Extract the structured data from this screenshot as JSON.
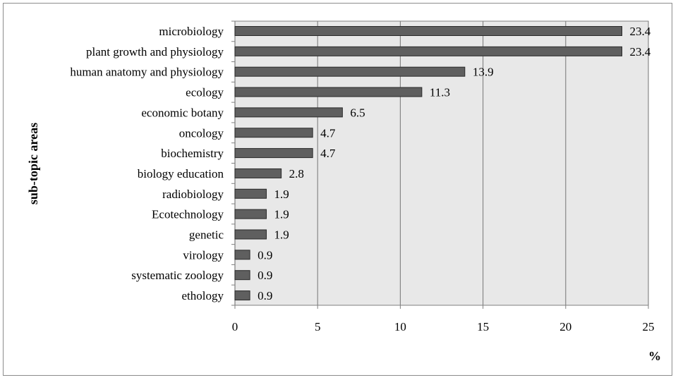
{
  "chart_data": {
    "type": "bar",
    "orientation": "horizontal",
    "categories": [
      "microbiology",
      "plant growth and physiology",
      "human anatomy and physiology",
      "ecology",
      "economic botany",
      "oncology",
      "biochemistry",
      "biology education",
      "radiobiology",
      "Ecotechnology",
      "genetic",
      "virology",
      "systematic zoology",
      "ethology"
    ],
    "values": [
      23.4,
      23.4,
      13.9,
      11.3,
      6.5,
      4.7,
      4.7,
      2.8,
      1.9,
      1.9,
      1.9,
      0.9,
      0.9,
      0.9
    ],
    "value_labels": [
      "23.4",
      "23.4",
      "13.9",
      "11.3",
      "6.5",
      "4.7",
      "4.7",
      "2.8",
      "1.9",
      "1.9",
      "1.9",
      "0.9",
      "0.9",
      "0.9"
    ],
    "title": "",
    "xlabel": "%",
    "ylabel": "sub-topic areas",
    "xlim": [
      0,
      25
    ],
    "xticks": [
      0,
      5,
      10,
      15,
      20,
      25
    ],
    "xtick_labels": [
      "0",
      "5",
      "10",
      "15",
      "20",
      "25"
    ],
    "grid": "vertical",
    "legend": "none",
    "colors": {
      "bar_fill": "#5f5f5f",
      "bar_stroke": "#2a2a2a",
      "plot_background": "#e8e8e8",
      "gridline": "#7f7f7f"
    }
  }
}
